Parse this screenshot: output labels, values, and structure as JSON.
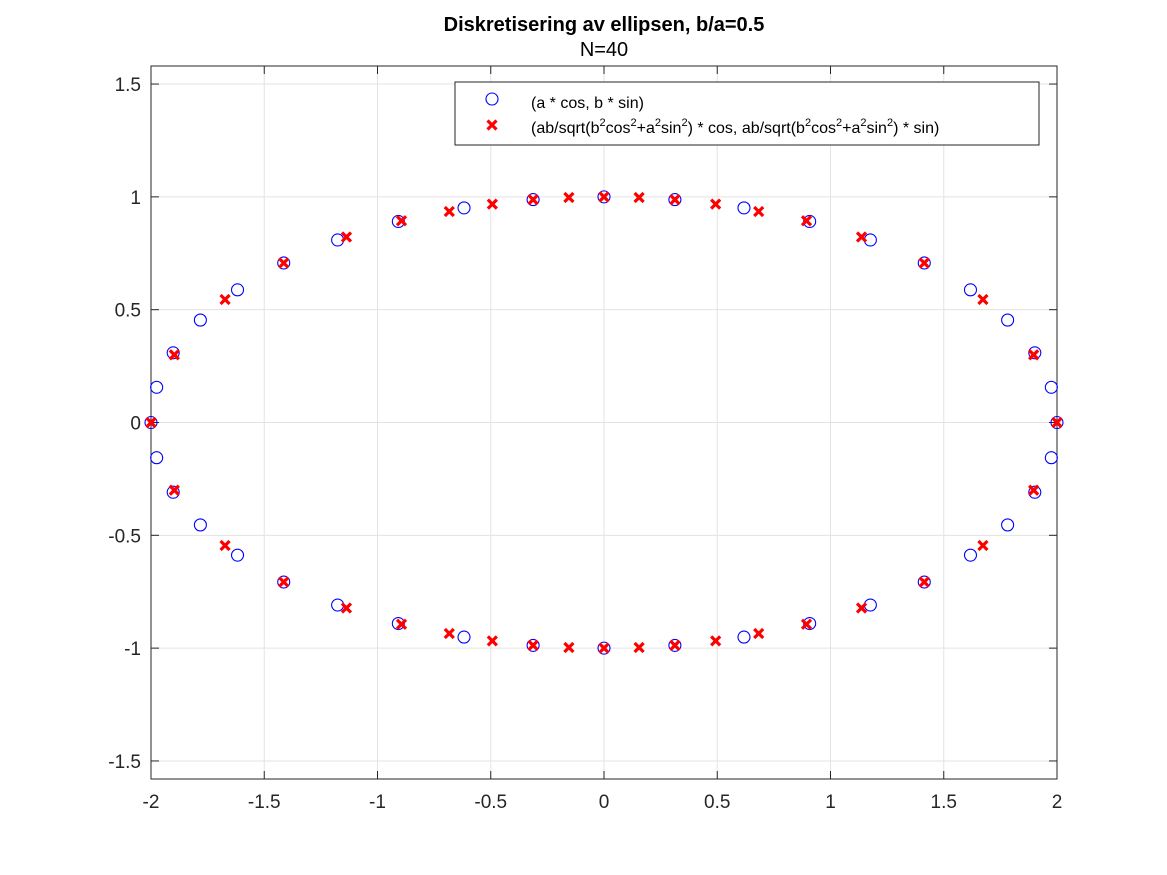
{
  "chart_data": {
    "type": "scatter",
    "title": "Diskretisering av ellipsen, b/a=0.5",
    "subtitle": "N=40",
    "xlabel": "",
    "ylabel": "",
    "xlim": [
      -2,
      2
    ],
    "ylim": [
      -1.58,
      1.58
    ],
    "xticks": [
      "-2",
      "-1.5",
      "-1",
      "-0.5",
      "0",
      "0.5",
      "1",
      "1.5",
      "2"
    ],
    "yticks": [
      "-1.5",
      "-1",
      "-0.5",
      "0",
      "0.5",
      "1",
      "1.5"
    ],
    "grid": true,
    "legend_position": "top-right",
    "series": [
      {
        "name": "(a * cos, b * sin)",
        "marker": "circle",
        "color": "#0000ff",
        "points": [
          [
            2.0,
            0.0
          ],
          [
            1.975,
            0.156
          ],
          [
            1.902,
            0.309
          ],
          [
            1.782,
            0.454
          ],
          [
            1.618,
            0.588
          ],
          [
            1.414,
            0.707
          ],
          [
            1.176,
            0.809
          ],
          [
            0.908,
            0.891
          ],
          [
            0.618,
            0.951
          ],
          [
            0.313,
            0.988
          ],
          [
            0.0,
            1.0
          ],
          [
            -0.313,
            0.988
          ],
          [
            -0.618,
            0.951
          ],
          [
            -0.908,
            0.891
          ],
          [
            -1.176,
            0.809
          ],
          [
            -1.414,
            0.707
          ],
          [
            -1.618,
            0.588
          ],
          [
            -1.782,
            0.454
          ],
          [
            -1.902,
            0.309
          ],
          [
            -1.975,
            0.156
          ],
          [
            -2.0,
            0.0
          ],
          [
            -1.975,
            -0.156
          ],
          [
            -1.902,
            -0.309
          ],
          [
            -1.782,
            -0.454
          ],
          [
            -1.618,
            -0.588
          ],
          [
            -1.414,
            -0.707
          ],
          [
            -1.176,
            -0.809
          ],
          [
            -0.908,
            -0.891
          ],
          [
            -0.618,
            -0.951
          ],
          [
            -0.313,
            -0.988
          ],
          [
            0.0,
            -1.0
          ],
          [
            0.313,
            -0.988
          ],
          [
            0.618,
            -0.951
          ],
          [
            0.908,
            -0.891
          ],
          [
            1.176,
            -0.809
          ],
          [
            1.414,
            -0.707
          ],
          [
            1.618,
            -0.588
          ],
          [
            1.782,
            -0.454
          ],
          [
            1.902,
            -0.309
          ],
          [
            1.975,
            -0.156
          ]
        ]
      },
      {
        "name_parts": [
          {
            "t": "(ab/sqrt(b"
          },
          {
            "t": "2",
            "sup": true
          },
          {
            "t": "cos"
          },
          {
            "t": "2",
            "sup": true
          },
          {
            "t": "+a"
          },
          {
            "t": "2",
            "sup": true
          },
          {
            "t": "sin"
          },
          {
            "t": "2",
            "sup": true
          },
          {
            "t": ") * cos, ab/sqrt(b"
          },
          {
            "t": "2",
            "sup": true
          },
          {
            "t": "cos"
          },
          {
            "t": "2",
            "sup": true
          },
          {
            "t": "+a"
          },
          {
            "t": "2",
            "sup": true
          },
          {
            "t": "sin"
          },
          {
            "t": "2",
            "sup": true
          },
          {
            "t": ") * sin)"
          }
        ],
        "marker": "x",
        "color": "#ff0000",
        "points": [
          [
            2.0,
            0.0
          ],
          [
            1.897,
            0.3
          ],
          [
            1.673,
            0.545
          ],
          [
            1.414,
            0.707
          ],
          [
            1.137,
            0.822
          ],
          [
            0.894,
            0.894
          ],
          [
            0.683,
            0.935
          ],
          [
            0.493,
            0.968
          ],
          [
            0.313,
            0.988
          ],
          [
            0.155,
            0.997
          ],
          [
            0.0,
            1.0
          ],
          [
            -0.155,
            0.997
          ],
          [
            -0.313,
            0.988
          ],
          [
            -0.493,
            0.968
          ],
          [
            -0.683,
            0.935
          ],
          [
            -0.894,
            0.894
          ],
          [
            -1.137,
            0.822
          ],
          [
            -1.414,
            0.707
          ],
          [
            -1.673,
            0.545
          ],
          [
            -1.897,
            0.3
          ],
          [
            -2.0,
            0.0
          ],
          [
            -1.897,
            -0.3
          ],
          [
            -1.673,
            -0.545
          ],
          [
            -1.414,
            -0.707
          ],
          [
            -1.137,
            -0.822
          ],
          [
            -0.894,
            -0.894
          ],
          [
            -0.683,
            -0.935
          ],
          [
            -0.493,
            -0.968
          ],
          [
            -0.313,
            -0.988
          ],
          [
            -0.155,
            -0.997
          ],
          [
            0.0,
            -1.0
          ],
          [
            0.155,
            -0.997
          ],
          [
            0.313,
            -0.988
          ],
          [
            0.493,
            -0.968
          ],
          [
            0.683,
            -0.935
          ],
          [
            0.894,
            -0.894
          ],
          [
            1.137,
            -0.822
          ],
          [
            1.414,
            -0.707
          ],
          [
            1.673,
            -0.545
          ],
          [
            1.897,
            -0.3
          ]
        ]
      }
    ]
  }
}
